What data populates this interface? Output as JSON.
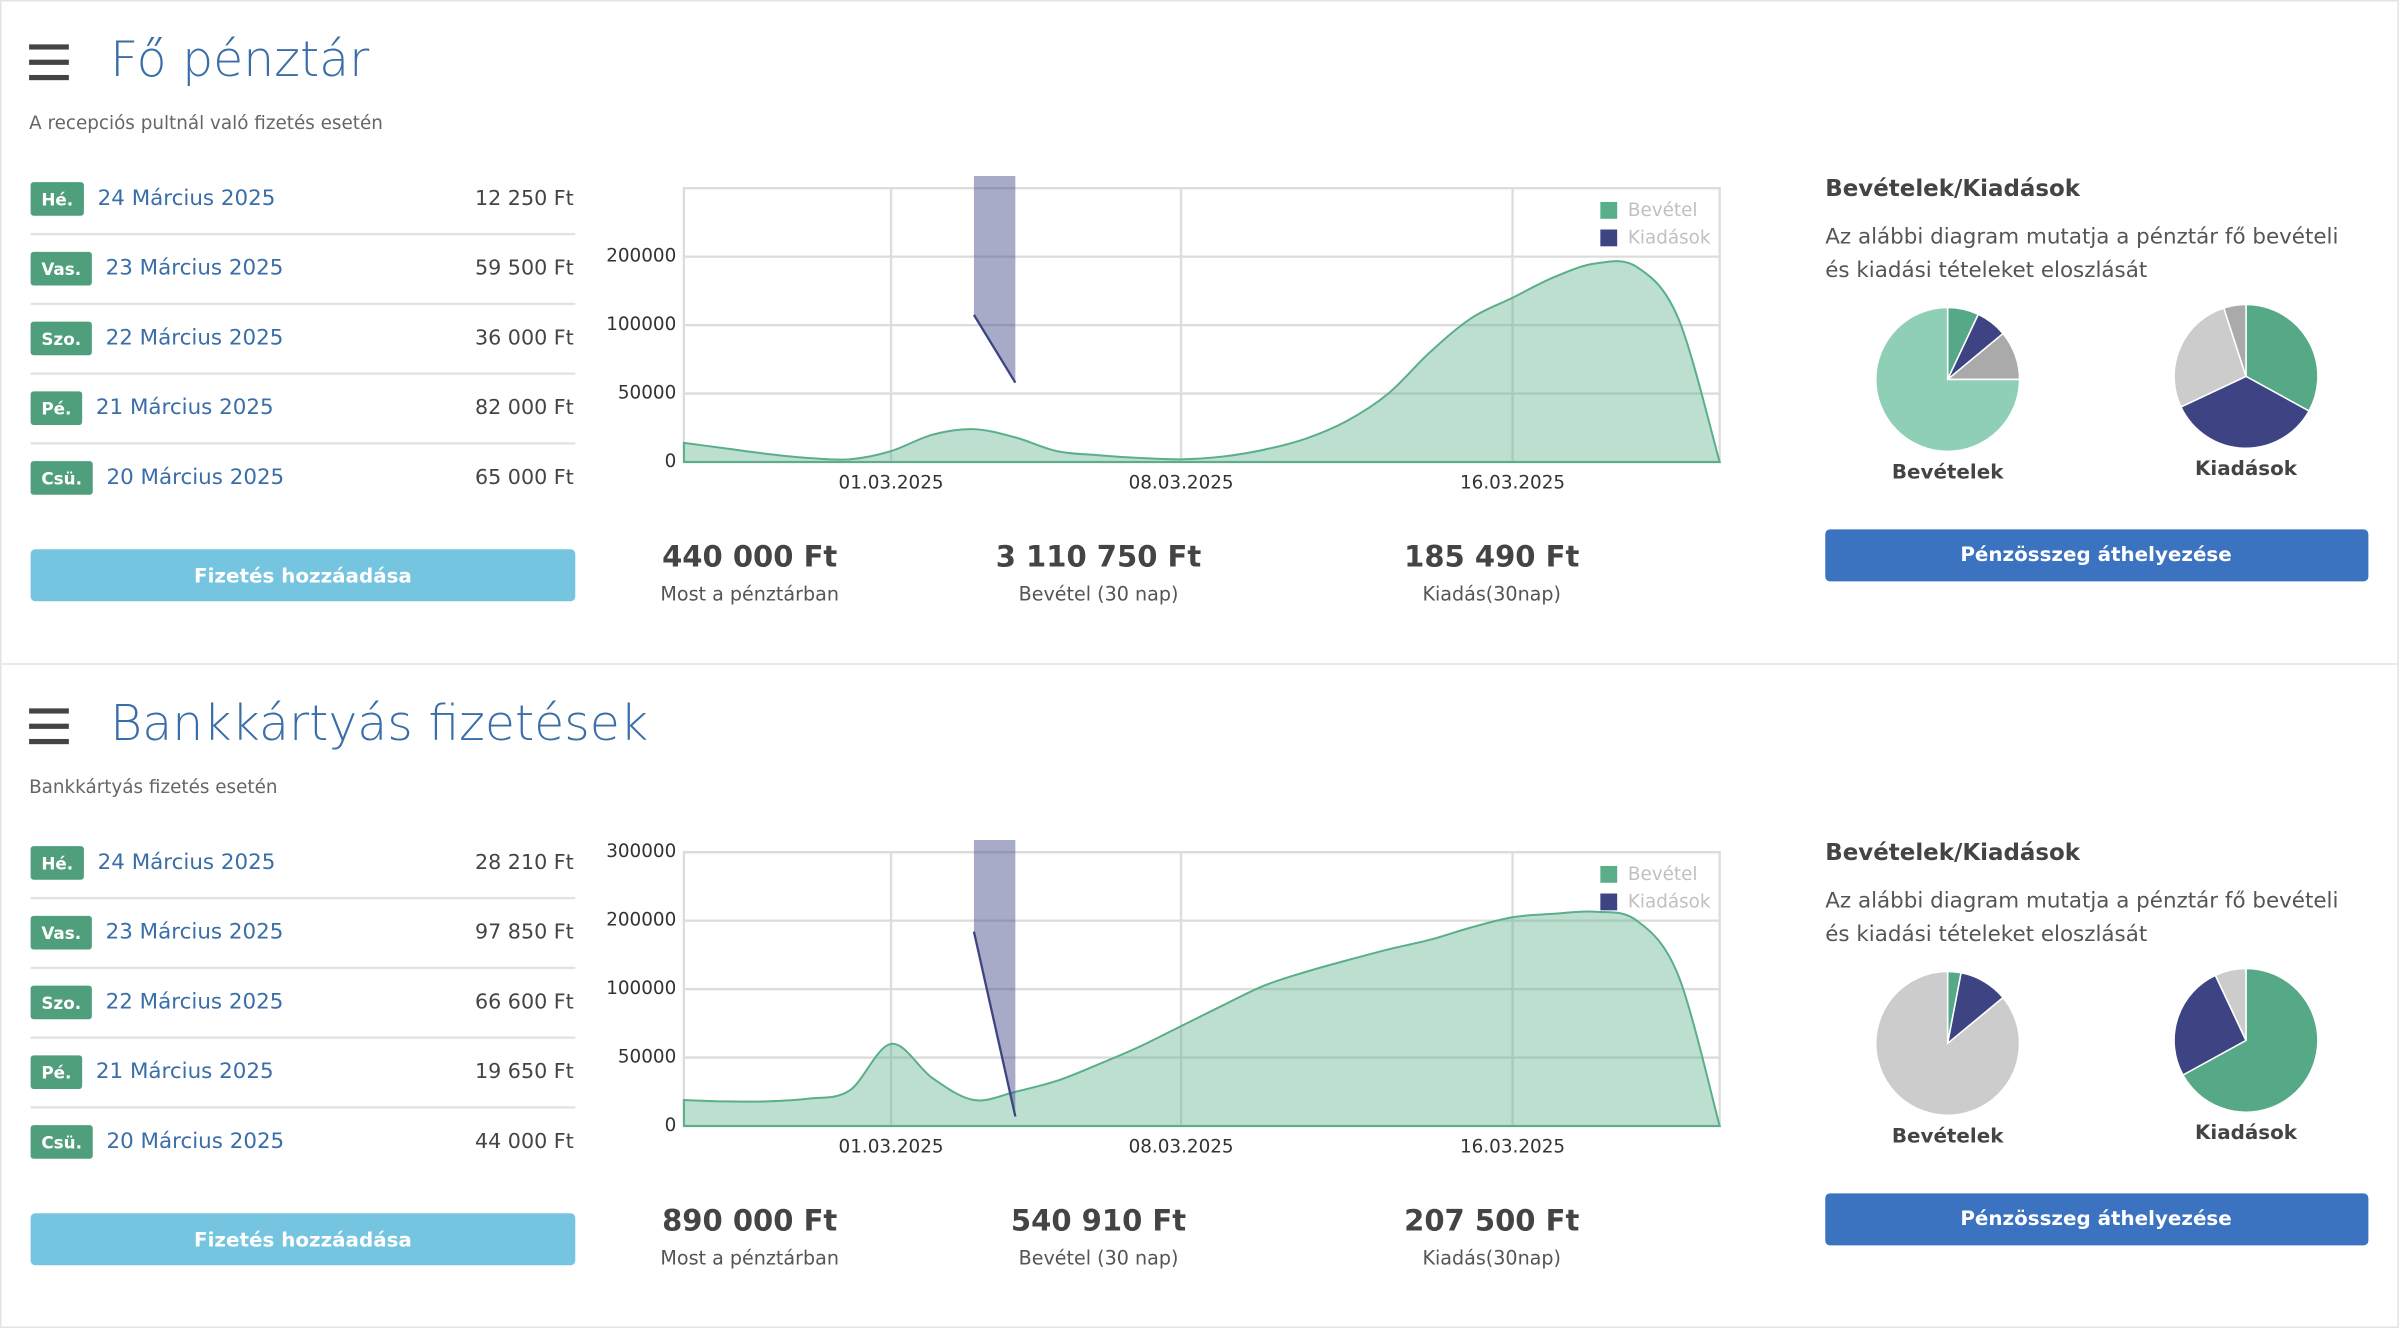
{
  "panels": [
    {
      "title": "Fő pénztár",
      "subtitle": "A recepciós pultnál való fizetés esetén",
      "entries": [
        {
          "day": "Hé.",
          "date": "24 Március 2025",
          "amount": "12 250 Ft"
        },
        {
          "day": "Vas.",
          "date": "23 Március 2025",
          "amount": "59 500 Ft"
        },
        {
          "day": "Szo.",
          "date": "22 Március 2025",
          "amount": "36 000 Ft"
        },
        {
          "day": "Pé.",
          "date": "21 Március 2025",
          "amount": "82 000 Ft"
        },
        {
          "day": "Csü.",
          "date": "20 Március 2025",
          "amount": "65 000 Ft"
        }
      ],
      "add_button": "Fizetés hozzáadása",
      "chart": {
        "type": "area",
        "x": [
          "2025-02-24",
          "2025-02-25",
          "2025-02-26",
          "2025-02-27",
          "2025-02-28",
          "2025-03-01",
          "2025-03-02",
          "2025-03-03",
          "2025-03-04",
          "2025-03-05",
          "2025-03-06",
          "2025-03-07",
          "2025-03-08",
          "2025-03-09",
          "2025-03-10",
          "2025-03-11",
          "2025-03-12",
          "2025-03-13",
          "2025-03-14",
          "2025-03-15",
          "2025-03-16",
          "2025-03-17",
          "2025-03-18",
          "2025-03-19",
          "2025-03-20",
          "2025-03-21"
        ],
        "xlim": [
          "2025-02-24",
          "2025-03-21"
        ],
        "xticks": [
          {
            "value": "2025-03-01",
            "label": "01.03.2025"
          },
          {
            "value": "2025-03-08",
            "label": "08.03.2025"
          },
          {
            "value": "2025-03-16",
            "label": "16.03.2025"
          }
        ],
        "ylim": [
          0,
          300000
        ],
        "yticks": [
          0,
          50000,
          100000,
          200000
        ],
        "grid": true,
        "series": [
          {
            "name": "Bevétel",
            "color": "#5aae8a",
            "values": [
              14000,
              10000,
              6000,
              3000,
              2000,
              8000,
              20000,
              24000,
              18000,
              8000,
              5000,
              3000,
              2000,
              4000,
              9000,
              17000,
              30000,
              50000,
              80000,
              110000,
              140000,
              170000,
              190000,
              185000,
              110000,
              0
            ]
          },
          {
            "name": "Kiadások",
            "color": "#3e4483",
            "values": [
              null,
              null,
              null,
              null,
              null,
              null,
              null,
              115000,
              58000,
              null,
              null,
              null,
              null,
              null,
              null,
              null,
              null,
              null,
              null,
              null,
              null,
              null,
              null,
              null,
              null,
              null
            ]
          }
        ]
      },
      "stats": [
        {
          "value": "440 000 Ft",
          "label": "Most a pénztárban"
        },
        {
          "value": "3 110 750 Ft",
          "label": "Bevétel (30 nap)"
        },
        {
          "value": "185 490 Ft",
          "label": "Kiadás(30nap)"
        }
      ],
      "pies": {
        "title": "Bevételek/Kiadások",
        "description": "Az alábbi diagram mutatja a pénztár fő bevételi és kiadási tételeket eloszlását",
        "charts": [
          {
            "type": "pie",
            "label": "Bevételek",
            "colors": [
              "#56a987",
              "#3e4483",
              "#aaaaaa",
              "#8fcfb6"
            ],
            "values": [
              7,
              7,
              11,
              75
            ]
          },
          {
            "type": "pie",
            "label": "Kiadások",
            "colors": [
              "#56a987",
              "#3e4483",
              "#cccccc",
              "#aaaaaa"
            ],
            "values": [
              33,
              35,
              27,
              5
            ]
          }
        ]
      },
      "transfer_button": "Pénzösszeg áthelyezése"
    },
    {
      "title": "Bankkártyás fizetések",
      "subtitle": "Bankkártyás fizetés esetén",
      "entries": [
        {
          "day": "Hé.",
          "date": "24 Március 2025",
          "amount": "28 210 Ft"
        },
        {
          "day": "Vas.",
          "date": "23 Március 2025",
          "amount": "97 850 Ft"
        },
        {
          "day": "Szo.",
          "date": "22 Március 2025",
          "amount": "66 600 Ft"
        },
        {
          "day": "Pé.",
          "date": "21 Március 2025",
          "amount": "19 650 Ft"
        },
        {
          "day": "Csü.",
          "date": "20 Március 2025",
          "amount": "44 000 Ft"
        }
      ],
      "add_button": "Fizetés hozzáadása",
      "chart": {
        "type": "area",
        "x": [
          "2025-02-24",
          "2025-02-25",
          "2025-02-26",
          "2025-02-27",
          "2025-02-28",
          "2025-03-01",
          "2025-03-02",
          "2025-03-03",
          "2025-03-04",
          "2025-03-05",
          "2025-03-06",
          "2025-03-07",
          "2025-03-08",
          "2025-03-09",
          "2025-03-10",
          "2025-03-11",
          "2025-03-12",
          "2025-03-13",
          "2025-03-14",
          "2025-03-15",
          "2025-03-16",
          "2025-03-17",
          "2025-03-18",
          "2025-03-19",
          "2025-03-20",
          "2025-03-21"
        ],
        "xlim": [
          "2025-02-24",
          "2025-03-21"
        ],
        "xticks": [
          {
            "value": "2025-03-01",
            "label": "01.03.2025"
          },
          {
            "value": "2025-03-08",
            "label": "08.03.2025"
          },
          {
            "value": "2025-03-16",
            "label": "16.03.2025"
          }
        ],
        "ylim": [
          0,
          300000
        ],
        "yticks": [
          0,
          50000,
          100000,
          200000,
          300000
        ],
        "grid": true,
        "series": [
          {
            "name": "Bevétel",
            "color": "#5aae8a",
            "values": [
              19000,
              18000,
              18000,
              20000,
              26000,
              60000,
              35000,
              19000,
              25000,
              33000,
              45000,
              58000,
              73000,
              88000,
              105000,
              125000,
              142000,
              158000,
              172000,
              190000,
              205000,
              210000,
              213000,
              200000,
              120000,
              0
            ]
          },
          {
            "name": "Kiadások",
            "color": "#3e4483",
            "values": [
              null,
              null,
              null,
              null,
              null,
              null,
              null,
              184000,
              7000,
              null,
              null,
              null,
              null,
              null,
              null,
              null,
              null,
              null,
              null,
              null,
              null,
              null,
              null,
              null,
              null,
              null
            ]
          }
        ]
      },
      "stats": [
        {
          "value": "890 000 Ft",
          "label": "Most a pénztárban"
        },
        {
          "value": "540 910 Ft",
          "label": "Bevétel (30 nap)"
        },
        {
          "value": "207 500 Ft",
          "label": "Kiadás(30nap)"
        }
      ],
      "pies": {
        "title": "Bevételek/Kiadások",
        "description": "Az alábbi diagram mutatja a pénztár fő bevételi és kiadási tételeket eloszlását",
        "charts": [
          {
            "type": "pie",
            "label": "Bevételek",
            "colors": [
              "#56a987",
              "#3e4483",
              "#cccccc"
            ],
            "values": [
              3,
              11,
              86
            ]
          },
          {
            "type": "pie",
            "label": "Kiadások",
            "colors": [
              "#56a987",
              "#3e4483",
              "#cccccc"
            ],
            "values": [
              67,
              26,
              7
            ]
          }
        ]
      },
      "transfer_button": "Pénzösszeg áthelyezése"
    }
  ]
}
